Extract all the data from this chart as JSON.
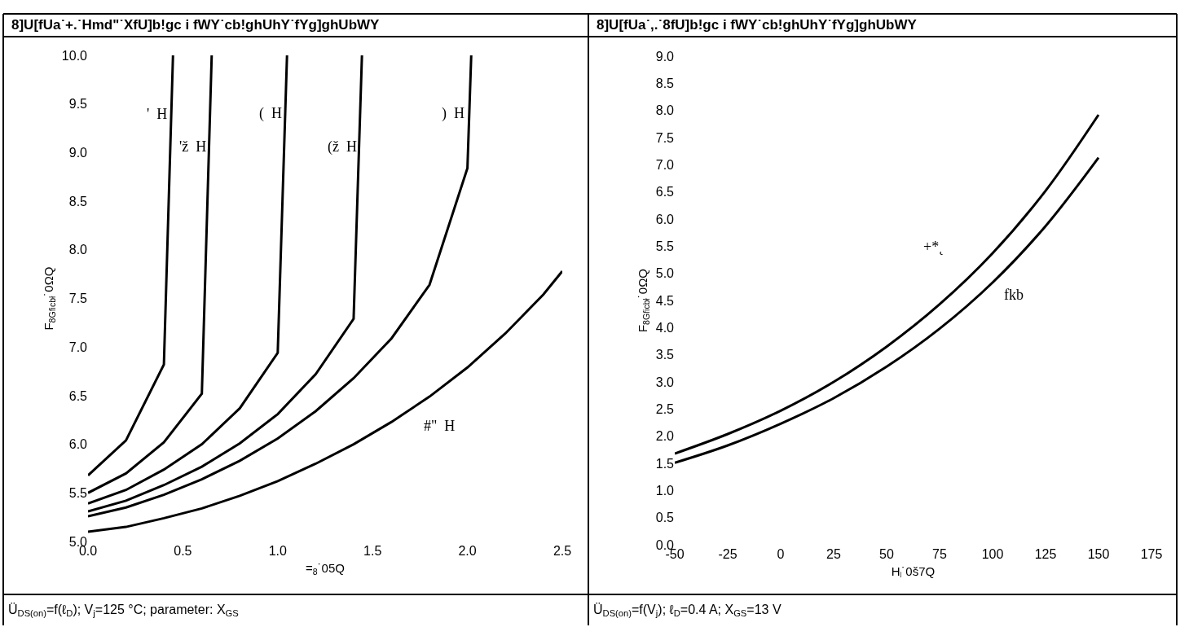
{
  "chart_data": [
    {
      "type": "line",
      "title": "8]U[fUa˙+.˙Hmd\"˙XfU]b!gc i fWY˙cb!ghUhY˙fYg]ghUbWY",
      "xlabel": "=$_{8}$˙05Q",
      "ylabel": "F$_{8Gficbł}$˙0ΩQ",
      "series": [
        {
          "color": "#000000",
          "x": [
            0,
            0.2,
            0.4,
            0.448
          ],
          "values": [
            5.68,
            6.04,
            6.82,
            10.0
          ]
        },
        {
          "color": "#000000",
          "x": [
            0,
            0.2,
            0.4,
            0.6,
            0.652
          ],
          "values": [
            5.5,
            5.7,
            6.02,
            6.52,
            10.0
          ]
        },
        {
          "color": "#000000",
          "x": [
            0,
            0.2,
            0.4,
            0.6,
            0.8,
            1.0,
            1.049
          ],
          "values": [
            5.39,
            5.53,
            5.74,
            6.0,
            6.37,
            6.94,
            10.0
          ]
        },
        {
          "color": "#000000",
          "x": [
            0,
            0.2,
            0.4,
            0.6,
            0.8,
            1.0,
            1.2,
            1.4,
            1.444
          ],
          "values": [
            5.31,
            5.42,
            5.58,
            5.77,
            6.01,
            6.31,
            6.72,
            7.29,
            10.0
          ]
        },
        {
          "color": "#000000",
          "x": [
            0,
            0.2,
            0.4,
            0.6,
            0.8,
            1.0,
            1.2,
            1.4,
            1.6,
            1.8,
            2.0,
            2.02
          ],
          "values": [
            5.26,
            5.35,
            5.48,
            5.64,
            5.83,
            6.06,
            6.34,
            6.68,
            7.09,
            7.64,
            8.84,
            10.0
          ]
        },
        {
          "color": "#000000",
          "x": [
            0,
            0.2,
            0.4,
            0.6,
            0.8,
            1.0,
            1.2,
            1.4,
            1.6,
            1.8,
            2.0,
            2.2,
            2.4,
            2.5
          ],
          "values": [
            5.1,
            5.15,
            5.24,
            5.34,
            5.47,
            5.62,
            5.8,
            6.0,
            6.23,
            6.49,
            6.79,
            7.14,
            7.54,
            7.78
          ]
        }
      ],
      "xlim": [
        0,
        2.5
      ],
      "ylim": [
        5,
        10
      ],
      "xticks": [
        {
          "value": 0,
          "label": "0.0"
        },
        0.5,
        {
          "value": 1,
          "label": "1.0"
        },
        1.5,
        {
          "value": 2,
          "label": "2.0"
        },
        2.5
      ],
      "yticks": [
        {
          "value": 5,
          "label": "5.0"
        },
        5.5,
        {
          "value": 6,
          "label": "6.0"
        },
        6.5,
        {
          "value": 7,
          "label": "7.0"
        },
        7.5,
        {
          "value": 8,
          "label": "8.0"
        },
        8.5,
        {
          "value": 9,
          "label": "9.0"
        },
        9.5,
        {
          "value": 10,
          "label": "10.0"
        }
      ],
      "marker": "none",
      "line_style": "solid",
      "annotations": [
        "'  H",
        "'ž  H",
        "(  H",
        "(ž  H",
        ")  H",
        "#\"  H",
        "Ü$_{DS(on)}$=f(ℓ$_{D}$); V$_{j}$=125 °C; parameter: X$_{GS}$"
      ]
    },
    {
      "type": "line",
      "title": "8]U[fUa˙,.˙8fU]b!gc i fWY˙cb!ghUhY˙fYg]ghUbWY",
      "xlabel": "H$_{ʲ}$˙0š7Q",
      "ylabel": "F$_{8Gficbł}$˙0ΩQ",
      "series": [
        {
          "color": "#000000",
          "x": [
            -50,
            -25,
            0,
            25,
            50,
            75,
            100,
            125,
            150
          ],
          "values": [
            1.68,
            2.04,
            2.47,
            3.0,
            3.65,
            4.43,
            5.37,
            6.52,
            7.92
          ]
        },
        {
          "color": "#000000",
          "x": [
            -50,
            -25,
            0,
            25,
            50,
            75,
            100,
            125,
            150
          ],
          "values": [
            1.51,
            1.83,
            2.23,
            2.7,
            3.28,
            3.98,
            4.83,
            5.87,
            7.13
          ]
        }
      ],
      "xlim": [
        -50,
        175
      ],
      "ylim": [
        0,
        9
      ],
      "xticks": [
        -50,
        -25,
        0,
        25,
        50,
        75,
        100,
        125,
        150,
        175
      ],
      "yticks": [
        {
          "value": 0,
          "label": "0.0"
        },
        0.5,
        {
          "value": 1,
          "label": "1.0"
        },
        1.5,
        {
          "value": 2,
          "label": "2.0"
        },
        2.5,
        {
          "value": 3,
          "label": "3.0"
        },
        3.5,
        {
          "value": 4,
          "label": "4.0"
        },
        4.5,
        {
          "value": 5,
          "label": "5.0"
        },
        5.5,
        {
          "value": 6,
          "label": "6.0"
        },
        6.5,
        {
          "value": 7,
          "label": "7.0"
        },
        7.5,
        {
          "value": 8,
          "label": "8.0"
        },
        8.5,
        {
          "value": 9,
          "label": "9.0"
        }
      ],
      "marker": "none",
      "line_style": "solid",
      "annotations": [
        "+*˛",
        "fkb",
        "Ü$_{DS(on)}$=f(V$_{j}$); ℓ$_{D}$=0.4 A; X$_{GS}$=13 V"
      ]
    }
  ]
}
